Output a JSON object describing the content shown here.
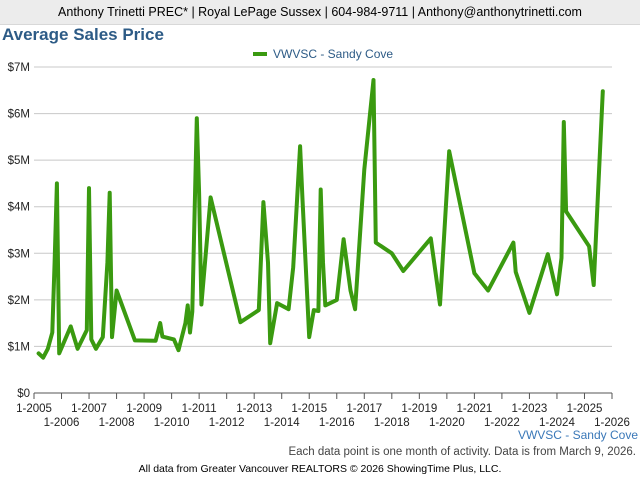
{
  "header": {
    "text": "Anthony Trinetti PREC* | Royal LePage Sussex | 604-984-9711 | Anthony@anthonytrinetti.com"
  },
  "title": "Average Sales Price",
  "series_tag": "VWVSC - Sandy Cove",
  "note": "Each data point is one month of activity. Data is from March 9, 2026.",
  "footer": "All data from Greater Vancouver REALTORS © 2026 ShowingTime Plus, LLC.",
  "colors": {
    "line": "#3a9a10",
    "grid": "#c8c8c8",
    "axis": "#555555"
  },
  "chart_data": {
    "type": "line",
    "title": "Average Sales Price",
    "legend": {
      "position": "top",
      "entries": [
        "VWVSC - Sandy Cove"
      ]
    },
    "grid": true,
    "ylim": [
      0,
      7000000
    ],
    "yticks": [
      {
        "value": 0,
        "label": "$0"
      },
      {
        "value": 1000000,
        "label": "$1M"
      },
      {
        "value": 2000000,
        "label": "$2M"
      },
      {
        "value": 3000000,
        "label": "$3M"
      },
      {
        "value": 4000000,
        "label": "$4M"
      },
      {
        "value": 5000000,
        "label": "$5M"
      },
      {
        "value": 6000000,
        "label": "$6M"
      },
      {
        "value": 7000000,
        "label": "$7M"
      }
    ],
    "xlim": [
      "2005-01",
      "2026-01"
    ],
    "xticks": [
      {
        "date": "2005-01",
        "label": "1-2005"
      },
      {
        "date": "2006-01",
        "label": "1-2006"
      },
      {
        "date": "2007-01",
        "label": "1-2007"
      },
      {
        "date": "2008-01",
        "label": "1-2008"
      },
      {
        "date": "2009-01",
        "label": "1-2009"
      },
      {
        "date": "2010-01",
        "label": "1-2010"
      },
      {
        "date": "2011-01",
        "label": "1-2011"
      },
      {
        "date": "2012-01",
        "label": "1-2012"
      },
      {
        "date": "2013-01",
        "label": "1-2013"
      },
      {
        "date": "2014-01",
        "label": "1-2014"
      },
      {
        "date": "2015-01",
        "label": "1-2015"
      },
      {
        "date": "2016-01",
        "label": "1-2016"
      },
      {
        "date": "2017-01",
        "label": "1-2017"
      },
      {
        "date": "2018-01",
        "label": "1-2018"
      },
      {
        "date": "2019-01",
        "label": "1-2019"
      },
      {
        "date": "2020-01",
        "label": "1-2020"
      },
      {
        "date": "2021-01",
        "label": "1-2021"
      },
      {
        "date": "2022-01",
        "label": "1-2022"
      },
      {
        "date": "2023-01",
        "label": "1-2023"
      },
      {
        "date": "2024-01",
        "label": "1-2024"
      },
      {
        "date": "2025-01",
        "label": "1-2025"
      },
      {
        "date": "2026-01",
        "label": "1-2026"
      }
    ],
    "series": [
      {
        "name": "VWVSC - Sandy Cove",
        "points": [
          {
            "x": "2005-03",
            "y": 850000
          },
          {
            "x": "2005-05",
            "y": 760000
          },
          {
            "x": "2005-07",
            "y": 950000
          },
          {
            "x": "2005-09",
            "y": 1300000
          },
          {
            "x": "2005-10",
            "y": 2800000
          },
          {
            "x": "2005-11",
            "y": 4500000
          },
          {
            "x": "2005-12",
            "y": 850000
          },
          {
            "x": "2006-05",
            "y": 1430000
          },
          {
            "x": "2006-08",
            "y": 950000
          },
          {
            "x": "2006-12",
            "y": 1350000
          },
          {
            "x": "2007-01",
            "y": 4400000
          },
          {
            "x": "2007-02",
            "y": 1150000
          },
          {
            "x": "2007-04",
            "y": 950000
          },
          {
            "x": "2007-07",
            "y": 1200000
          },
          {
            "x": "2007-09",
            "y": 2800000
          },
          {
            "x": "2007-10",
            "y": 4300000
          },
          {
            "x": "2007-11",
            "y": 1200000
          },
          {
            "x": "2008-01",
            "y": 2200000
          },
          {
            "x": "2008-09",
            "y": 1130000
          },
          {
            "x": "2009-06",
            "y": 1120000
          },
          {
            "x": "2009-08",
            "y": 1500000
          },
          {
            "x": "2009-09",
            "y": 1210000
          },
          {
            "x": "2010-02",
            "y": 1150000
          },
          {
            "x": "2010-04",
            "y": 920000
          },
          {
            "x": "2010-07",
            "y": 1500000
          },
          {
            "x": "2010-08",
            "y": 1880000
          },
          {
            "x": "2010-09",
            "y": 1300000
          },
          {
            "x": "2010-10",
            "y": 1750000
          },
          {
            "x": "2010-12",
            "y": 5900000
          },
          {
            "x": "2011-01",
            "y": 4300000
          },
          {
            "x": "2011-02",
            "y": 1900000
          },
          {
            "x": "2011-06",
            "y": 4200000
          },
          {
            "x": "2012-07",
            "y": 1520000
          },
          {
            "x": "2013-03",
            "y": 1780000
          },
          {
            "x": "2013-05",
            "y": 4100000
          },
          {
            "x": "2013-07",
            "y": 2800000
          },
          {
            "x": "2013-08",
            "y": 1070000
          },
          {
            "x": "2013-11",
            "y": 1930000
          },
          {
            "x": "2014-04",
            "y": 1800000
          },
          {
            "x": "2014-06",
            "y": 2700000
          },
          {
            "x": "2014-09",
            "y": 5300000
          },
          {
            "x": "2014-10",
            "y": 4200000
          },
          {
            "x": "2015-01",
            "y": 1200000
          },
          {
            "x": "2015-03",
            "y": 1780000
          },
          {
            "x": "2015-05",
            "y": 1760000
          },
          {
            "x": "2015-06",
            "y": 4370000
          },
          {
            "x": "2015-07",
            "y": 2800000
          },
          {
            "x": "2015-08",
            "y": 1880000
          },
          {
            "x": "2016-01",
            "y": 2000000
          },
          {
            "x": "2016-04",
            "y": 3300000
          },
          {
            "x": "2016-07",
            "y": 2200000
          },
          {
            "x": "2016-09",
            "y": 1800000
          },
          {
            "x": "2017-01",
            "y": 4800000
          },
          {
            "x": "2017-05",
            "y": 6720000
          },
          {
            "x": "2017-06",
            "y": 3230000
          },
          {
            "x": "2018-01",
            "y": 3000000
          },
          {
            "x": "2018-06",
            "y": 2620000
          },
          {
            "x": "2019-06",
            "y": 3320000
          },
          {
            "x": "2019-10",
            "y": 1900000
          },
          {
            "x": "2020-02",
            "y": 5190000
          },
          {
            "x": "2021-01",
            "y": 2570000
          },
          {
            "x": "2021-07",
            "y": 2200000
          },
          {
            "x": "2022-06",
            "y": 3230000
          },
          {
            "x": "2022-07",
            "y": 2600000
          },
          {
            "x": "2023-01",
            "y": 1720000
          },
          {
            "x": "2023-09",
            "y": 2980000
          },
          {
            "x": "2024-01",
            "y": 2120000
          },
          {
            "x": "2024-03",
            "y": 2900000
          },
          {
            "x": "2024-04",
            "y": 5820000
          },
          {
            "x": "2024-05",
            "y": 3900000
          },
          {
            "x": "2025-03",
            "y": 3150000
          },
          {
            "x": "2025-05",
            "y": 2320000
          },
          {
            "x": "2025-09",
            "y": 6480000
          }
        ]
      }
    ]
  }
}
